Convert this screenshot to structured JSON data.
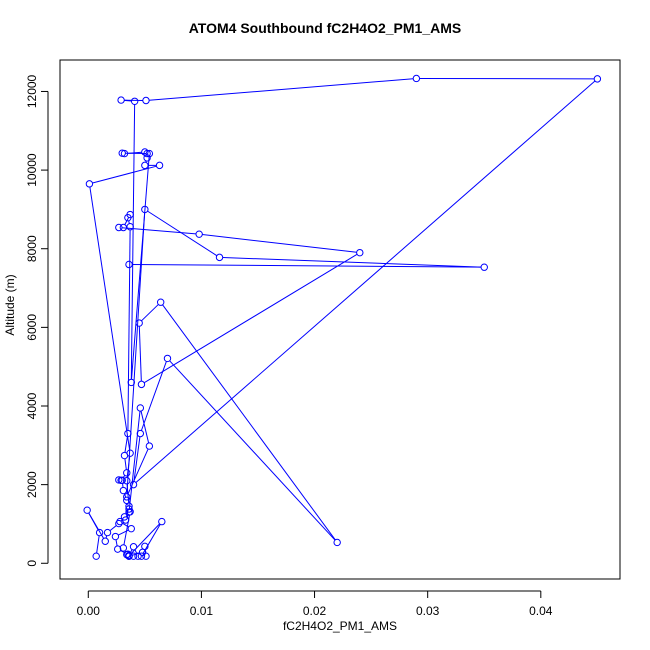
{
  "chart_data": {
    "type": "line",
    "title": "ATOM4 Southbound fC2H4O2_PM1_AMS",
    "xlabel": "fC2H4O2_PM1_AMS",
    "ylabel": "Altitude (m)",
    "xlim": [
      -0.0025,
      0.047
    ],
    "ylim": [
      -400,
      12800
    ],
    "xticks": [
      0.0,
      0.01,
      0.02,
      0.03,
      0.04
    ],
    "xtick_labels": [
      "0.00",
      "0.01",
      "0.02",
      "0.03",
      "0.04"
    ],
    "yticks": [
      0,
      2000,
      4000,
      6000,
      8000,
      10000,
      12000
    ],
    "ytick_labels": [
      "0",
      "2000",
      "4000",
      "6000",
      "8000",
      "10000",
      "12000"
    ],
    "grid": false,
    "legend": "none",
    "series": [
      {
        "color": "#0000ff",
        "marker": "open-circle",
        "points": [
          [
            0.0007,
            180
          ],
          [
            0.001,
            780
          ],
          [
            -0.0001,
            1350
          ],
          [
            0.0015,
            560
          ],
          [
            0.0017,
            780
          ],
          [
            0.0027,
            1010
          ],
          [
            0.0032,
            1180
          ],
          [
            0.0036,
            1380
          ],
          [
            0.0034,
            1600
          ],
          [
            0.0031,
            1850
          ],
          [
            0.003,
            2110
          ],
          [
            0.0027,
            2120
          ],
          [
            0.0029,
            2110
          ],
          [
            0.0034,
            2300
          ],
          [
            0.0032,
            2740
          ],
          [
            0.0035,
            3300
          ],
          [
            0.0037,
            8560
          ],
          [
            0.0035,
            8790
          ],
          [
            0.0037,
            8870
          ],
          [
            0.0031,
            8540
          ],
          [
            0.0027,
            8540
          ],
          [
            0.0098,
            8370
          ],
          [
            0.024,
            7900
          ],
          [
            0.0047,
            4550
          ],
          [
            0.0045,
            6110
          ],
          [
            0.0064,
            6640
          ],
          [
            0.022,
            530
          ],
          [
            0.007,
            5210
          ],
          [
            0.0046,
            3300
          ],
          [
            0.004,
            2000
          ],
          [
            0.045,
            12320
          ],
          [
            0.029,
            12330
          ],
          [
            0.0051,
            11770
          ],
          [
            0.0029,
            11780
          ],
          [
            0.0041,
            11750
          ],
          [
            0.0038,
            4600
          ],
          [
            0.0054,
            10420
          ],
          [
            0.003,
            10430
          ],
          [
            0.0032,
            10420
          ],
          [
            0.005,
            10460
          ],
          [
            0.0052,
            10420
          ],
          [
            0.0052,
            10310
          ],
          [
            0.005,
            10120
          ],
          [
            0.0063,
            10120
          ],
          [
            0.0001,
            9650
          ],
          [
            0.0037,
            2800
          ],
          [
            0.0034,
            2100
          ],
          [
            0.0036,
            1450
          ],
          [
            0.0033,
            1100
          ],
          [
            0.0028,
            1060
          ],
          [
            0.0038,
            880
          ],
          [
            0.0024,
            680
          ],
          [
            0.0026,
            360
          ],
          [
            0.0035,
            230
          ],
          [
            0.0036,
            180
          ],
          [
            0.004,
            180
          ],
          [
            0.0044,
            180
          ],
          [
            0.004,
            420
          ],
          [
            0.0036,
            200
          ],
          [
            0.0036,
            190
          ],
          [
            0.0065,
            1060
          ],
          [
            0.0047,
            180
          ],
          [
            0.0051,
            180
          ],
          [
            0.005,
            430
          ],
          [
            0.0048,
            280
          ],
          [
            0.0036,
            180
          ],
          [
            0.0034,
            220
          ],
          [
            0.0031,
            390
          ],
          [
            0.0037,
            1310
          ],
          [
            0.0036,
            1300
          ],
          [
            0.0046,
            3950
          ],
          [
            0.0054,
            2980
          ],
          [
            0.0034,
            1690
          ],
          [
            0.005,
            9000
          ],
          [
            0.0116,
            7780
          ],
          [
            0.035,
            7530
          ],
          [
            0.0036,
            7600
          ]
        ]
      }
    ]
  }
}
